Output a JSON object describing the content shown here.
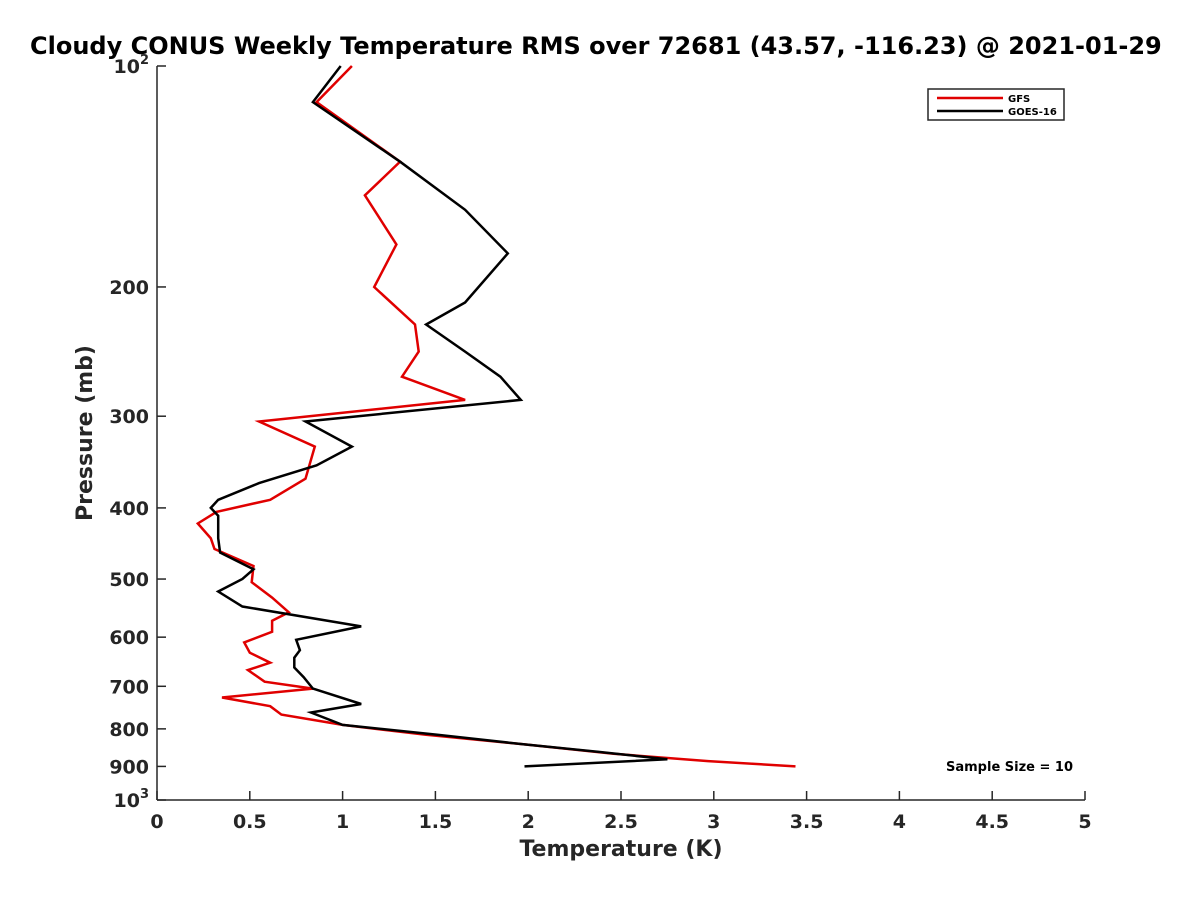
{
  "chart_data": {
    "type": "line",
    "title": "Cloudy CONUS Weekly Temperature RMS over 72681 (43.57, -116.23) @ 2021-01-29",
    "xlabel": "Temperature (K)",
    "ylabel": "Pressure (mb)",
    "xlim": [
      0,
      5
    ],
    "ylim": [
      100,
      1000
    ],
    "y_scale": "log",
    "y_reversed": true,
    "grid": false,
    "legend_position": "top-right",
    "x_ticks": [
      0,
      0.5,
      1,
      1.5,
      2,
      2.5,
      3,
      3.5,
      4,
      4.5,
      5
    ],
    "x_tick_labels": [
      "0",
      "0.5",
      "1",
      "1.5",
      "2",
      "2.5",
      "3",
      "3.5",
      "4",
      "4.5",
      "5"
    ],
    "y_ticks": [
      100,
      200,
      300,
      400,
      500,
      600,
      700,
      800,
      900,
      1000
    ],
    "y_tick_labels": [
      {
        "base": "10",
        "exp": "2"
      },
      {
        "base": "200",
        "exp": ""
      },
      {
        "base": "300",
        "exp": ""
      },
      {
        "base": "400",
        "exp": ""
      },
      {
        "base": "500",
        "exp": ""
      },
      {
        "base": "600",
        "exp": ""
      },
      {
        "base": "700",
        "exp": ""
      },
      {
        "base": "800",
        "exp": ""
      },
      {
        "base": "900",
        "exp": ""
      },
      {
        "base": "10",
        "exp": "3"
      }
    ],
    "annotation": "Sample Size = 10",
    "series": [
      {
        "name": "GFS",
        "color": "#e00000",
        "points": [
          [
            1.05,
            100
          ],
          [
            0.86,
            112
          ],
          [
            1.31,
            135
          ],
          [
            1.12,
            150
          ],
          [
            1.29,
            175
          ],
          [
            1.17,
            200
          ],
          [
            1.39,
            225
          ],
          [
            1.41,
            245
          ],
          [
            1.32,
            265
          ],
          [
            1.66,
            285
          ],
          [
            0.55,
            305
          ],
          [
            0.85,
            330
          ],
          [
            0.8,
            365
          ],
          [
            0.61,
            390
          ],
          [
            0.32,
            405
          ],
          [
            0.22,
            420
          ],
          [
            0.29,
            440
          ],
          [
            0.31,
            455
          ],
          [
            0.52,
            480
          ],
          [
            0.51,
            505
          ],
          [
            0.62,
            530
          ],
          [
            0.71,
            555
          ],
          [
            0.62,
            570
          ],
          [
            0.62,
            590
          ],
          [
            0.47,
            610
          ],
          [
            0.5,
            630
          ],
          [
            0.61,
            650
          ],
          [
            0.49,
            665
          ],
          [
            0.58,
            690
          ],
          [
            0.84,
            705
          ],
          [
            0.35,
            725
          ],
          [
            0.61,
            745
          ],
          [
            0.67,
            765
          ],
          [
            1.0,
            790
          ],
          [
            1.45,
            815
          ],
          [
            1.98,
            840
          ],
          [
            2.46,
            865
          ],
          [
            2.97,
            885
          ],
          [
            3.44,
            900
          ]
        ]
      },
      {
        "name": "GOES-16",
        "color": "#000000",
        "points": [
          [
            0.99,
            100
          ],
          [
            0.84,
            112
          ],
          [
            1.31,
            135
          ],
          [
            1.66,
            157
          ],
          [
            1.89,
            180
          ],
          [
            1.66,
            210
          ],
          [
            1.45,
            225
          ],
          [
            1.66,
            245
          ],
          [
            1.85,
            265
          ],
          [
            1.96,
            285
          ],
          [
            0.8,
            305
          ],
          [
            1.05,
            330
          ],
          [
            0.86,
            350
          ],
          [
            0.55,
            370
          ],
          [
            0.33,
            390
          ],
          [
            0.29,
            400
          ],
          [
            0.33,
            410
          ],
          [
            0.33,
            440
          ],
          [
            0.34,
            460
          ],
          [
            0.52,
            485
          ],
          [
            0.46,
            500
          ],
          [
            0.33,
            520
          ],
          [
            0.46,
            545
          ],
          [
            1.1,
            580
          ],
          [
            0.75,
            605
          ],
          [
            0.77,
            625
          ],
          [
            0.74,
            640
          ],
          [
            0.74,
            660
          ],
          [
            0.79,
            680
          ],
          [
            0.84,
            705
          ],
          [
            1.1,
            740
          ],
          [
            0.83,
            760
          ],
          [
            1.0,
            790
          ],
          [
            1.51,
            815
          ],
          [
            1.98,
            840
          ],
          [
            2.38,
            860
          ],
          [
            2.75,
            880
          ],
          [
            1.98,
            900
          ]
        ]
      }
    ]
  }
}
